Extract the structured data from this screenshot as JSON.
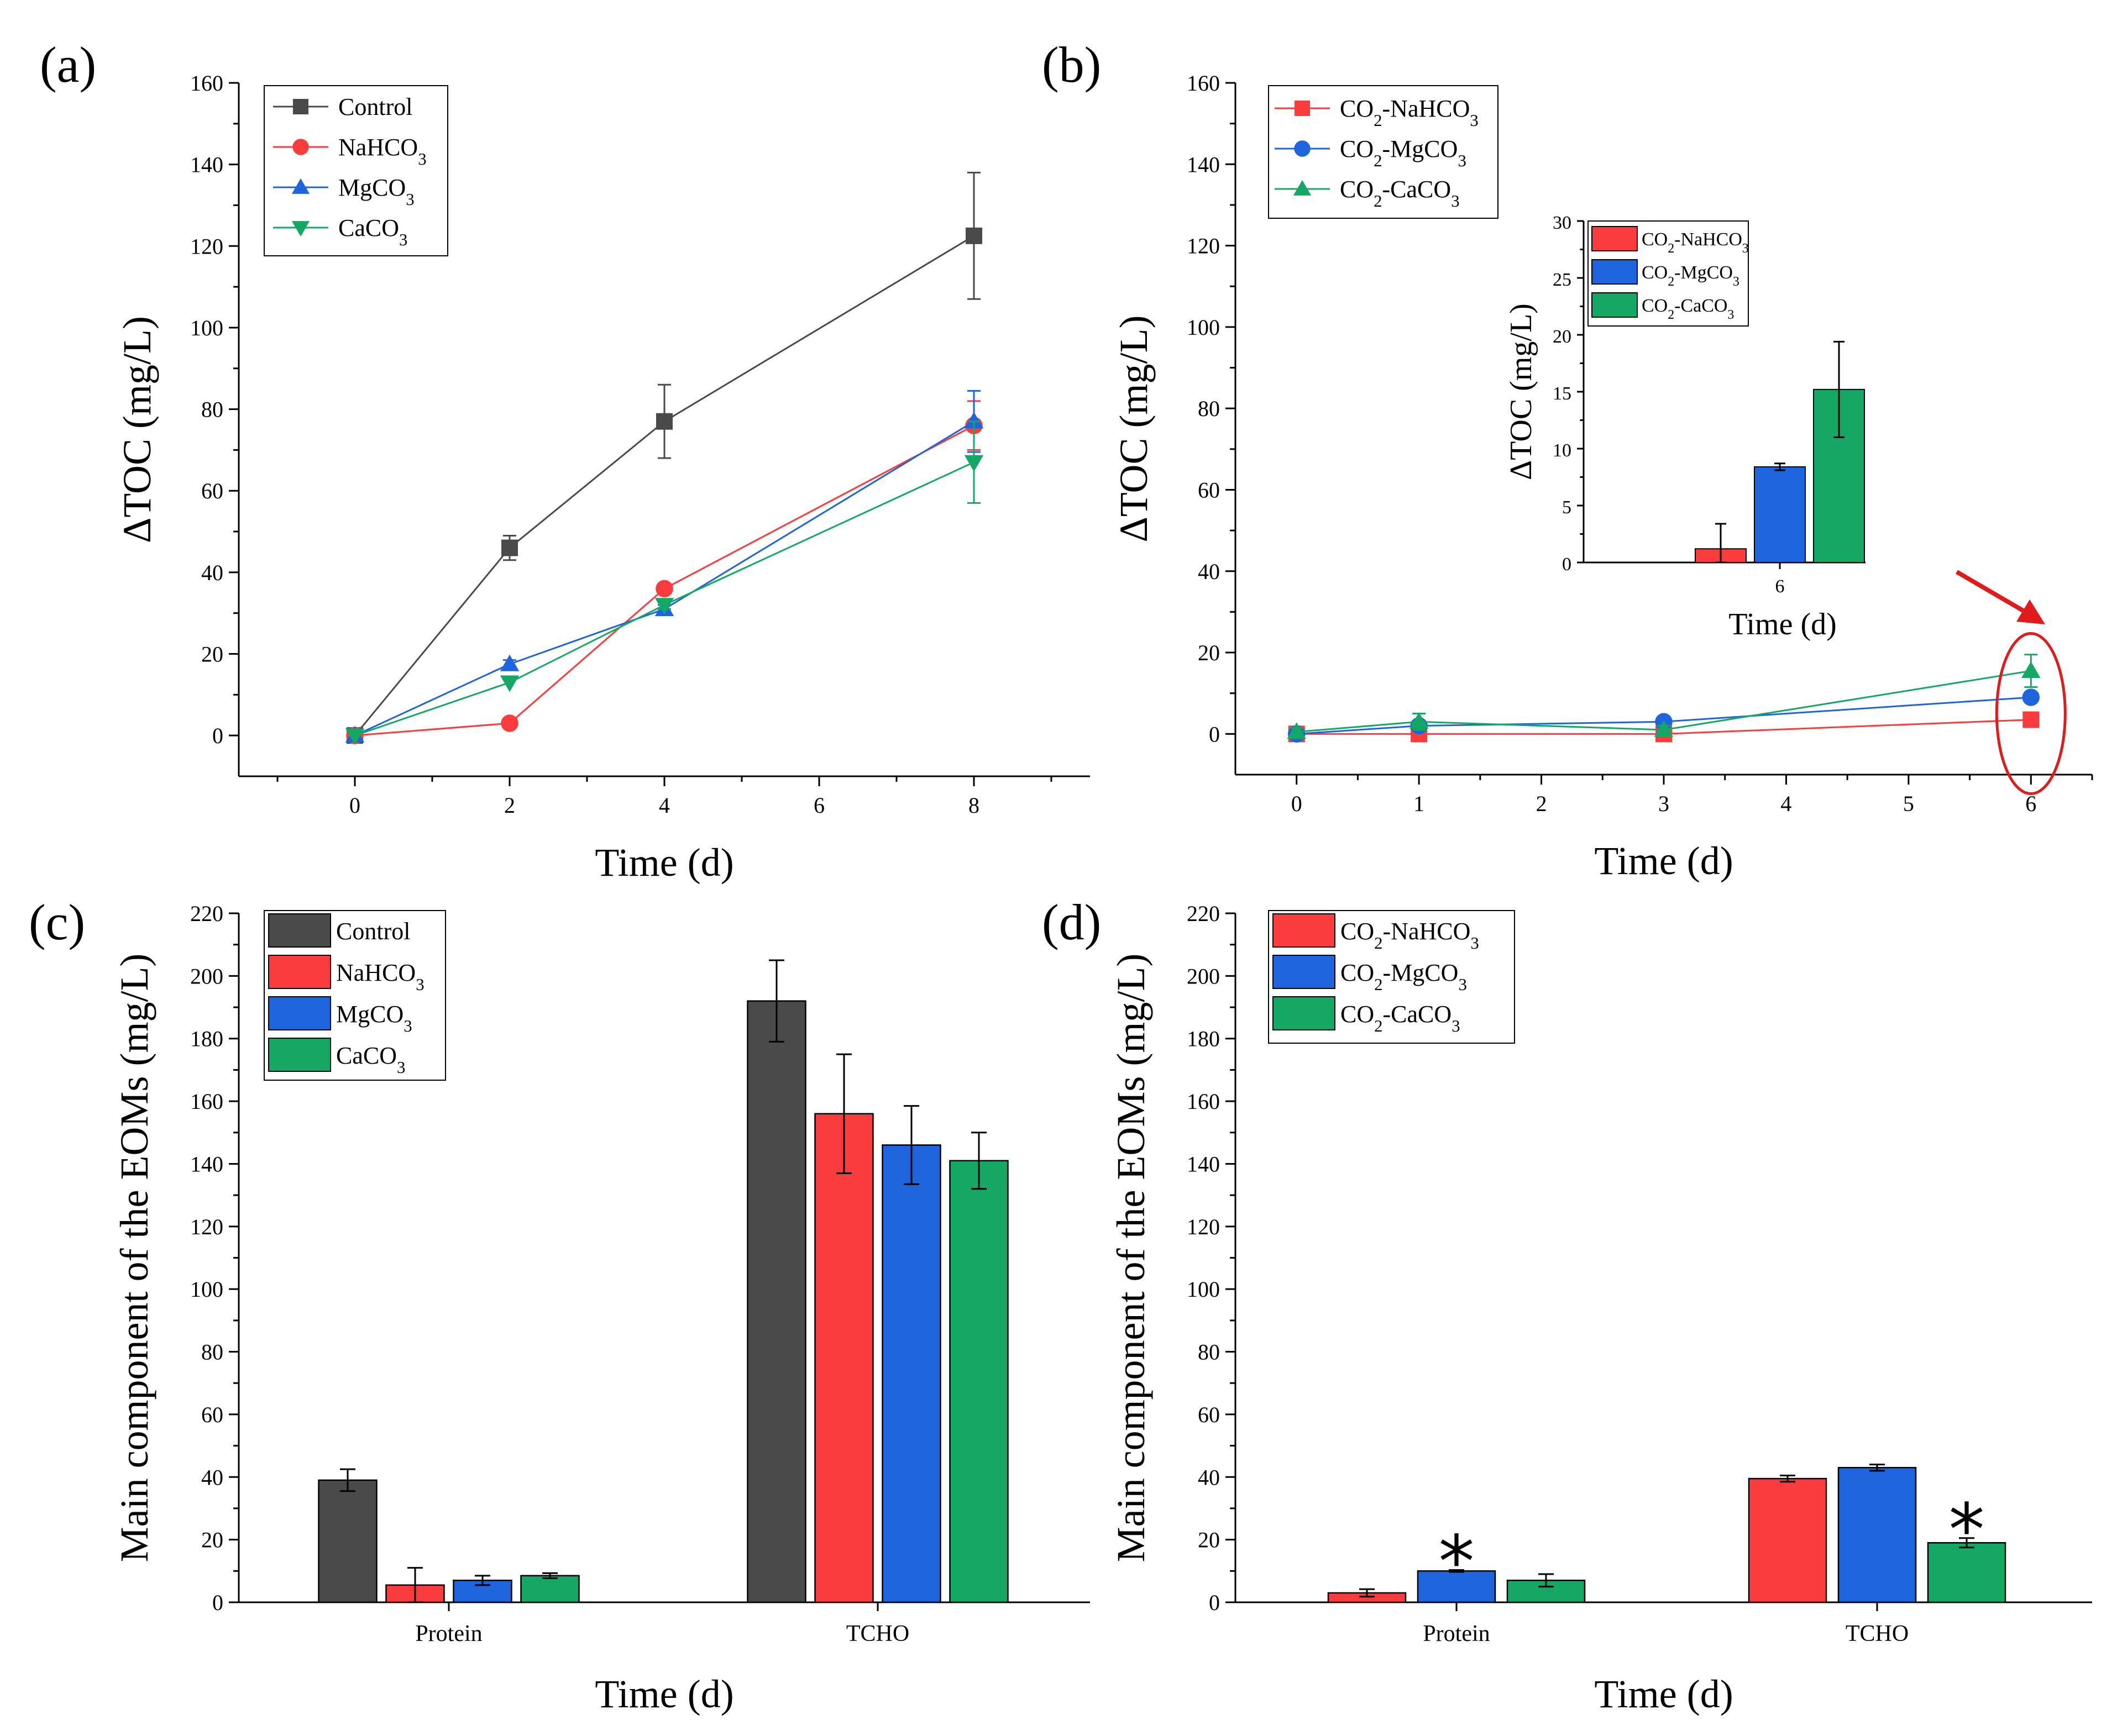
{
  "colors": {
    "control": "#4a4a4a",
    "nahco3": "#fa3c3c",
    "mgco3": "#1e64dc",
    "caco3": "#14a864",
    "callout": "#e01b1b"
  },
  "chart_data": [
    {
      "panel": "(a)",
      "type": "line",
      "title": "",
      "xlabel": "Time (d)",
      "ylabel": "ΔTOC (mg/L)",
      "xlim": [
        -1.5,
        9.5
      ],
      "ylim": [
        -10,
        160
      ],
      "xticks": [
        "0",
        "2",
        "4",
        "6",
        "8"
      ],
      "yticks": [
        "0",
        "20",
        "40",
        "60",
        "80",
        "100",
        "120",
        "140",
        "160"
      ],
      "legend_position": "top-left",
      "series": [
        {
          "key": "control",
          "name": "Control",
          "sub": "",
          "marker": "square",
          "x": [
            0,
            2,
            4,
            8
          ],
          "y": [
            0,
            46,
            77,
            122.5
          ],
          "err": [
            0,
            3,
            9,
            15.5
          ]
        },
        {
          "key": "nahco3",
          "name": "NaHCO",
          "sub": "3",
          "marker": "circle",
          "x": [
            0,
            2,
            4,
            8
          ],
          "y": [
            0,
            3,
            36,
            76
          ],
          "err": [
            0,
            0.5,
            1,
            6
          ]
        },
        {
          "key": "mgco3",
          "name": "MgCO",
          "sub": "3",
          "marker": "triangle-up",
          "x": [
            0,
            2,
            4,
            8
          ],
          "y": [
            0,
            17.5,
            31,
            77
          ],
          "err": [
            0,
            1,
            1,
            7.5
          ]
        },
        {
          "key": "caco3",
          "name": "CaCO",
          "sub": "3",
          "marker": "triangle-down",
          "x": [
            0,
            2,
            4,
            8
          ],
          "y": [
            0,
            13,
            32,
            67
          ],
          "err": [
            0,
            0.5,
            1,
            10
          ]
        }
      ]
    },
    {
      "panel": "(b)",
      "type": "line",
      "title": "",
      "xlabel": "Time (d)",
      "ylabel": "ΔTOC (mg/L)",
      "xlim": [
        -0.5,
        6.5
      ],
      "ylim": [
        -10,
        160
      ],
      "xticks": [
        "0",
        "1",
        "2",
        "3",
        "4",
        "5",
        "6"
      ],
      "xtick_values": [
        0,
        1,
        2,
        3,
        4,
        5,
        6
      ],
      "yticks": [
        "0",
        "20",
        "40",
        "60",
        "80",
        "100",
        "120",
        "140",
        "160"
      ],
      "legend_position": "top-left",
      "series": [
        {
          "key": "nahco3",
          "name": "CO",
          "sub": "2",
          "name2": "-NaHCO",
          "sub2": "3",
          "marker": "square",
          "x": [
            0,
            1,
            3,
            6
          ],
          "y": [
            0,
            0,
            0,
            3.5
          ],
          "err": [
            0.5,
            0.5,
            0.5,
            0.5
          ]
        },
        {
          "key": "mgco3",
          "name": "CO",
          "sub": "2",
          "name2": "-MgCO",
          "sub2": "3",
          "marker": "circle",
          "x": [
            0,
            1,
            3,
            6
          ],
          "y": [
            0,
            2,
            3,
            9
          ],
          "err": [
            0.5,
            1,
            1,
            1
          ]
        },
        {
          "key": "caco3",
          "name": "CO",
          "sub": "2",
          "name2": "-CaCO",
          "sub2": "3",
          "marker": "triangle-up",
          "x": [
            0,
            1,
            3,
            6
          ],
          "y": [
            0.5,
            3,
            1,
            15.5
          ],
          "err": [
            1,
            2,
            1,
            4
          ]
        }
      ],
      "inset": {
        "type": "bar",
        "xlabel": "Time (d)",
        "ylabel": "ΔTOC (mg/L)",
        "ylim": [
          0,
          30
        ],
        "yticks": [
          "0",
          "5",
          "10",
          "15",
          "20",
          "25",
          "30"
        ],
        "category": "6",
        "legend_position": "top-left",
        "bars": [
          {
            "key": "nahco3",
            "name": "CO",
            "sub": "2",
            "name2": "-NaHCO",
            "sub2": "3",
            "value": 1.2,
            "err": 2.2
          },
          {
            "key": "mgco3",
            "name": "CO",
            "sub": "2",
            "name2": "-MgCO",
            "sub2": "3",
            "value": 8.4,
            "err": 0.3
          },
          {
            "key": "caco3",
            "name": "CO",
            "sub": "2",
            "name2": "-CaCO",
            "sub2": "3",
            "value": 15.2,
            "err": 4.2
          }
        ]
      }
    },
    {
      "panel": "(c)",
      "type": "bar",
      "title": "",
      "xlabel": "Time (d)",
      "ylabel": "Main component of the EOMs (mg/L)",
      "ylim": [
        0,
        220
      ],
      "yticks": [
        "0",
        "20",
        "40",
        "60",
        "80",
        "100",
        "120",
        "140",
        "160",
        "180",
        "200",
        "220"
      ],
      "categories": [
        "Protein",
        "TCHO"
      ],
      "legend_position": "top-left",
      "series": [
        {
          "key": "control",
          "name": "Control",
          "sub": "",
          "values": [
            39,
            192
          ],
          "err": [
            3.5,
            13
          ]
        },
        {
          "key": "nahco3",
          "name": "NaHCO",
          "sub": "3",
          "values": [
            5.5,
            156
          ],
          "err": [
            5.5,
            19
          ]
        },
        {
          "key": "mgco3",
          "name": "MgCO",
          "sub": "3",
          "values": [
            7,
            146
          ],
          "err": [
            1.5,
            12.5
          ]
        },
        {
          "key": "caco3",
          "name": "CaCO",
          "sub": "3",
          "values": [
            8.5,
            141
          ],
          "err": [
            0.8,
            9
          ]
        }
      ]
    },
    {
      "panel": "(d)",
      "type": "bar",
      "title": "",
      "xlabel": "Time (d)",
      "ylabel": "Main component of the EOMs (mg/L)",
      "ylim": [
        0,
        220
      ],
      "yticks": [
        "0",
        "20",
        "40",
        "60",
        "80",
        "100",
        "120",
        "140",
        "160",
        "180",
        "200",
        "220"
      ],
      "categories": [
        "Protein",
        "TCHO"
      ],
      "legend_position": "top-left",
      "annotations": [
        {
          "text": "*",
          "category": "Protein",
          "series": "mgco3"
        },
        {
          "text": "*",
          "category": "TCHO",
          "series": "caco3"
        }
      ],
      "series": [
        {
          "key": "nahco3",
          "name": "CO",
          "sub": "2",
          "name2": "-NaHCO",
          "sub2": "3",
          "values": [
            3,
            39.5
          ],
          "err": [
            1.2,
            1
          ]
        },
        {
          "key": "mgco3",
          "name": "CO",
          "sub": "2",
          "name2": "-MgCO",
          "sub2": "3",
          "values": [
            10,
            43
          ],
          "err": [
            0.3,
            1
          ]
        },
        {
          "key": "caco3",
          "name": "CO",
          "sub": "2",
          "name2": "-CaCO",
          "sub2": "3",
          "values": [
            7,
            19
          ],
          "err": [
            2,
            1.5
          ]
        }
      ]
    }
  ]
}
